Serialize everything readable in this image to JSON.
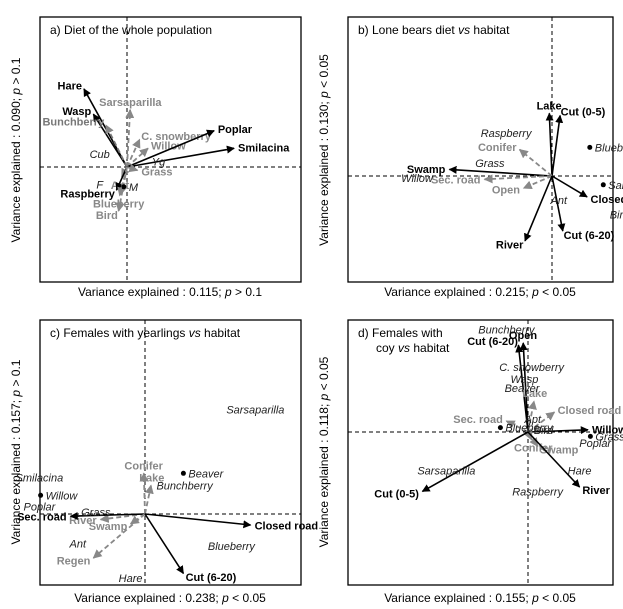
{
  "chart_data": [
    {
      "type": "scatter",
      "title": "a) Diet of the whole population",
      "xlabel": "Variance explained : 0.115; p > 0.1",
      "ylabel": "Variance explained : 0.090; p > 0.1",
      "xlim": [
        -1,
        1
      ],
      "ylim": [
        -1,
        1
      ],
      "arrows": [
        {
          "label": "Hare",
          "x": -0.41,
          "y": 0.71,
          "color": "#000000",
          "dashed": false,
          "label_style": "bold"
        },
        {
          "label": "Wasp",
          "x": -0.32,
          "y": 0.48,
          "color": "#000000",
          "dashed": false,
          "label_style": "bold"
        },
        {
          "label": "Bunchberry",
          "x": -0.2,
          "y": 0.38,
          "color": "#777777",
          "dashed": true,
          "label_style": "bold"
        },
        {
          "label": "Sarsaparilla",
          "x": 0.03,
          "y": 0.52,
          "color": "#888888",
          "dashed": true,
          "label_style": "bold"
        },
        {
          "label": "C. snowberry",
          "x": 0.12,
          "y": 0.25,
          "color": "#888888",
          "dashed": true,
          "label_style": "bold"
        },
        {
          "label": "Willow",
          "x": 0.2,
          "y": 0.17,
          "color": "#888888",
          "dashed": true,
          "label_style": "bold"
        },
        {
          "label": "Poplar",
          "x": 0.83,
          "y": 0.33,
          "color": "#000000",
          "dashed": false,
          "label_style": "bold"
        },
        {
          "label": "Smilacina",
          "x": 1.02,
          "y": 0.17,
          "color": "#000000",
          "dashed": false,
          "label_style": "bold"
        },
        {
          "label": "Grass",
          "x": 0.1,
          "y": -0.03,
          "color": "#888888",
          "dashed": true,
          "label_style": "bold"
        },
        {
          "label": "Ant",
          "x": -0.05,
          "y": -0.09,
          "color": "#888888",
          "dashed": true,
          "label_style": "bold"
        },
        {
          "label": "Raspberry",
          "x": -0.1,
          "y": -0.21,
          "color": "#000000",
          "dashed": false,
          "label_style": "bold"
        },
        {
          "label": "Blueberry",
          "x": -0.07,
          "y": -0.26,
          "color": "#888888",
          "dashed": true,
          "label_style": "bold"
        },
        {
          "label": "Bird",
          "x": -0.08,
          "y": -0.4,
          "color": "#888888",
          "dashed": true,
          "label_style": "bold"
        }
      ],
      "points": [
        {
          "label": "Cub",
          "x": -0.26,
          "y": 0.12,
          "marker": false
        },
        {
          "label": "Yg",
          "x": 0.3,
          "y": 0.05,
          "marker": false
        },
        {
          "label": "F",
          "x": -0.26,
          "y": -0.16,
          "marker": false
        },
        {
          "label": "M",
          "x": -0.03,
          "y": -0.18,
          "marker": true
        }
      ]
    },
    {
      "type": "scatter",
      "title": "b) Lone bears diet vs habitat",
      "title_parts": [
        "b) Lone bears diet ",
        "vs",
        " habitat"
      ],
      "xlabel": "Variance explained : 0.215; p < 0.05",
      "ylabel": "Variance explained : 0.130; p < 0.05",
      "xlim": [
        -1,
        1
      ],
      "ylim": [
        -1,
        1
      ],
      "arrows": [
        {
          "label": "Lake",
          "x": -0.02,
          "y": 0.57,
          "color": "#000000",
          "dashed": false,
          "label_style": "bold"
        },
        {
          "label": "Cut (0-5)",
          "x": 0.06,
          "y": 0.55,
          "color": "#000000",
          "dashed": false,
          "label_style": "bold"
        },
        {
          "label": "Conifer",
          "x": -0.24,
          "y": 0.24,
          "color": "#888888",
          "dashed": true,
          "label_style": "bold"
        },
        {
          "label": "Swamp",
          "x": -0.76,
          "y": 0.06,
          "color": "#000000",
          "dashed": false,
          "label_style": "bold"
        },
        {
          "label": "Sec. road",
          "x": -0.5,
          "y": -0.03,
          "color": "#888888",
          "dashed": true,
          "label_style": "bold"
        },
        {
          "label": "Open",
          "x": -0.21,
          "y": -0.11,
          "color": "#888888",
          "dashed": true,
          "label_style": "bold"
        },
        {
          "label": "Closed road",
          "x": 0.26,
          "y": -0.19,
          "color": "#000000",
          "dashed": false,
          "label_style": "bold"
        },
        {
          "label": "River",
          "x": -0.2,
          "y": -0.59,
          "color": "#000000",
          "dashed": false,
          "label_style": "bold"
        },
        {
          "label": "Cut (6-20)",
          "x": 0.08,
          "y": -0.5,
          "color": "#000000",
          "dashed": false,
          "label_style": "bold"
        }
      ],
      "points": [
        {
          "label": "Raspberry",
          "x": -0.34,
          "y": 0.39,
          "marker": false
        },
        {
          "label": "Blueberry",
          "x": 0.28,
          "y": 0.26,
          "marker": true
        },
        {
          "label": "Grass",
          "x": -0.46,
          "y": 0.12,
          "marker": false
        },
        {
          "label": "Willow",
          "x": -1.0,
          "y": -0.02,
          "marker": false
        },
        {
          "label": "Sarsaparilla",
          "x": 0.38,
          "y": -0.08,
          "marker": true
        },
        {
          "label": "Ant",
          "x": 0.05,
          "y": -0.22,
          "marker": false
        },
        {
          "label": "Bird",
          "x": 0.5,
          "y": -0.35,
          "marker": false
        }
      ]
    },
    {
      "type": "scatter",
      "title": "c) Females with yearlings vs habitat",
      "title_parts": [
        "c) Females with yearlings ",
        "vs",
        " habitat"
      ],
      "xlabel": "Variance explained : 0.238; p < 0.05",
      "ylabel": "Variance explained : 0.157; p > 0.1",
      "xlim": [
        -1,
        1
      ],
      "ylim": [
        -1,
        1
      ],
      "arrows": [
        {
          "label": "Conifer",
          "x": -0.01,
          "y": 0.37,
          "color": "#888888",
          "dashed": true,
          "label_style": "bold"
        },
        {
          "label": "Lake",
          "x": 0.05,
          "y": 0.26,
          "color": "#888888",
          "dashed": true,
          "label_style": "bold"
        },
        {
          "label": "River",
          "x": -0.37,
          "y": -0.05,
          "color": "#888888",
          "dashed": true,
          "label_style": "bold"
        },
        {
          "label": "Sec. road",
          "x": -0.62,
          "y": -0.02,
          "color": "#000000",
          "dashed": false,
          "label_style": "bold"
        },
        {
          "label": "Swamp",
          "x": -0.12,
          "y": -0.09,
          "color": "#888888",
          "dashed": true,
          "label_style": "bold"
        },
        {
          "label": "Regen",
          "x": -0.43,
          "y": -0.4,
          "color": "#888888",
          "dashed": true,
          "label_style": "bold"
        },
        {
          "label": "Closed road",
          "x": 0.88,
          "y": -0.1,
          "color": "#000000",
          "dashed": false,
          "label_style": "bold"
        },
        {
          "label": "Cut (6-20)",
          "x": 0.32,
          "y": -0.54,
          "color": "#000000",
          "dashed": false,
          "label_style": "bold"
        }
      ],
      "points": [
        {
          "label": "Sarsaparilla",
          "x": 0.92,
          "y": 0.95,
          "marker": false
        },
        {
          "label": "Beaver",
          "x": 0.32,
          "y": 0.37,
          "marker": true
        },
        {
          "label": "Bunchberry",
          "x": 0.33,
          "y": 0.26,
          "marker": false
        },
        {
          "label": "Smilacina",
          "x": -0.88,
          "y": 0.33,
          "marker": false
        },
        {
          "label": "Willow",
          "x": -0.87,
          "y": 0.17,
          "marker": true
        },
        {
          "label": "Poplar",
          "x": -0.88,
          "y": 0.07,
          "marker": false
        },
        {
          "label": "Grass",
          "x": -0.41,
          "y": 0.02,
          "marker": false
        },
        {
          "label": "Ant",
          "x": -0.56,
          "y": -0.27,
          "marker": false
        },
        {
          "label": "Blueberry",
          "x": 0.72,
          "y": -0.29,
          "marker": false
        },
        {
          "label": "Hare",
          "x": -0.12,
          "y": -0.58,
          "marker": false
        }
      ]
    },
    {
      "type": "scatter",
      "title": "d) Females with coy vs habitat",
      "title_parts": [
        "d) Females with",
        "coy ",
        "vs",
        " habitat"
      ],
      "xlabel": "Variance explained : 0.155; p < 0.05",
      "ylabel": "Variance explained : 0.118; p < 0.05",
      "xlim": [
        -1,
        1
      ],
      "ylim": [
        -1,
        1
      ],
      "arrows": [
        {
          "label": "Open",
          "x": -0.04,
          "y": 0.81,
          "color": "#000000",
          "dashed": false,
          "label_style": "bold"
        },
        {
          "label": "Cut (6-20)",
          "x": -0.08,
          "y": 0.79,
          "color": "#000000",
          "dashed": false,
          "label_style": "bold"
        },
        {
          "label": "Lake",
          "x": 0.05,
          "y": 0.28,
          "color": "#888888",
          "dashed": true,
          "label_style": "bold"
        },
        {
          "label": "Closed road",
          "x": 0.22,
          "y": 0.18,
          "color": "#888888",
          "dashed": true,
          "label_style": "bold"
        },
        {
          "label": "Sec. road",
          "x": -0.18,
          "y": 0.1,
          "color": "#888888",
          "dashed": true,
          "label_style": "bold"
        },
        {
          "label": "Willow",
          "x": 0.5,
          "y": 0.02,
          "color": "#000000",
          "dashed": false,
          "label_style": "bold"
        },
        {
          "label": "Conifer",
          "x": 0.03,
          "y": -0.07,
          "color": "#888888",
          "dashed": true,
          "label_style": "bold"
        },
        {
          "label": "Swamp",
          "x": 0.08,
          "y": -0.13,
          "color": "#888888",
          "dashed": true,
          "label_style": "bold"
        },
        {
          "label": "Cut (0-5)",
          "x": -0.88,
          "y": -0.54,
          "color": "#000000",
          "dashed": false,
          "label_style": "bold"
        },
        {
          "label": "River",
          "x": 0.43,
          "y": -0.5,
          "color": "#000000",
          "dashed": false,
          "label_style": "bold"
        }
      ],
      "points": [
        {
          "label": "Bunchberry",
          "x": -0.18,
          "y": 0.93,
          "marker": false
        },
        {
          "label": "C. snowberry",
          "x": 0.03,
          "y": 0.59,
          "marker": false
        },
        {
          "label": "Wasp",
          "x": -0.03,
          "y": 0.48,
          "marker": false
        },
        {
          "label": "Beaver",
          "x": -0.05,
          "y": 0.4,
          "marker": false
        },
        {
          "label": "Apt",
          "x": 0.04,
          "y": 0.12,
          "marker": false
        },
        {
          "label": "Blueberry",
          "x": -0.23,
          "y": 0.04,
          "marker": true
        },
        {
          "label": "Bird",
          "x": 0.13,
          "y": 0.02,
          "marker": false
        },
        {
          "label": "Grass",
          "x": 0.52,
          "y": -0.04,
          "marker": true
        },
        {
          "label": "Poplar",
          "x": 0.56,
          "y": -0.1,
          "marker": false
        },
        {
          "label": "Sarsaparilla",
          "x": -0.68,
          "y": -0.35,
          "marker": false
        },
        {
          "label": "Hare",
          "x": 0.43,
          "y": -0.35,
          "marker": false
        },
        {
          "label": "Raspberry",
          "x": 0.08,
          "y": -0.54,
          "marker": false
        }
      ]
    }
  ]
}
